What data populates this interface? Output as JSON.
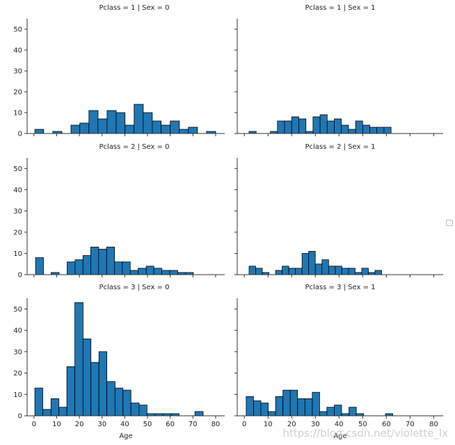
{
  "colors": {
    "bar": "#1f77b4",
    "edge": "#000000",
    "axis": "#333333"
  },
  "watermark": "https://blog.csdn.net/violette_lx",
  "chart_data": {
    "type": "bar",
    "facet_grid": {
      "rows": 3,
      "cols": 2,
      "sharex": true,
      "sharey": true
    },
    "xlabel": "Age",
    "ylim": [
      0,
      55
    ],
    "xlim": [
      -3,
      84
    ],
    "xticks": [
      0,
      10,
      20,
      30,
      40,
      50,
      60,
      70,
      80
    ],
    "yticks": [
      0,
      10,
      20,
      30,
      40,
      50
    ],
    "legend": "right",
    "panels": [
      {
        "title": "Pclass = 1 | Sex = 0",
        "bins": [
          {
            "x0": 0.4,
            "x1": 4.3,
            "value": 2
          },
          {
            "x0": 8.3,
            "x1": 12.3,
            "value": 1
          },
          {
            "x0": 16.3,
            "x1": 20.2,
            "value": 4
          },
          {
            "x0": 20.2,
            "x1": 24.2,
            "value": 5
          },
          {
            "x0": 24.2,
            "x1": 28.2,
            "value": 11
          },
          {
            "x0": 28.2,
            "x1": 32.2,
            "value": 7
          },
          {
            "x0": 32.2,
            "x1": 36.2,
            "value": 11
          },
          {
            "x0": 36.2,
            "x1": 40.1,
            "value": 10
          },
          {
            "x0": 40.1,
            "x1": 44.1,
            "value": 4
          },
          {
            "x0": 44.1,
            "x1": 48.1,
            "value": 14
          },
          {
            "x0": 48.1,
            "x1": 52.1,
            "value": 10
          },
          {
            "x0": 52.1,
            "x1": 56.0,
            "value": 6
          },
          {
            "x0": 56.0,
            "x1": 60.0,
            "value": 4
          },
          {
            "x0": 60.0,
            "x1": 64.0,
            "value": 6
          },
          {
            "x0": 64.0,
            "x1": 68.0,
            "value": 2
          },
          {
            "x0": 68.0,
            "x1": 72.0,
            "value": 3
          },
          {
            "x0": 76.0,
            "x1": 80.0,
            "value": 1
          }
        ]
      },
      {
        "title": "Pclass = 1 | Sex = 1",
        "bins": [
          {
            "x0": 2.0,
            "x1": 5.0,
            "value": 1
          },
          {
            "x0": 11.0,
            "x1": 14.0,
            "value": 1
          },
          {
            "x0": 14.0,
            "x1": 17.0,
            "value": 6
          },
          {
            "x0": 17.0,
            "x1": 20.0,
            "value": 6
          },
          {
            "x0": 20.0,
            "x1": 23.0,
            "value": 8
          },
          {
            "x0": 23.0,
            "x1": 26.0,
            "value": 7
          },
          {
            "x0": 26.0,
            "x1": 29.0,
            "value": 1
          },
          {
            "x0": 29.0,
            "x1": 32.0,
            "value": 8
          },
          {
            "x0": 32.0,
            "x1": 35.0,
            "value": 9
          },
          {
            "x0": 35.0,
            "x1": 38.0,
            "value": 6
          },
          {
            "x0": 38.0,
            "x1": 41.0,
            "value": 7
          },
          {
            "x0": 41.0,
            "x1": 44.0,
            "value": 4
          },
          {
            "x0": 44.0,
            "x1": 47.0,
            "value": 2
          },
          {
            "x0": 47.0,
            "x1": 50.0,
            "value": 6
          },
          {
            "x0": 50.0,
            "x1": 53.0,
            "value": 4
          },
          {
            "x0": 53.0,
            "x1": 56.0,
            "value": 3
          },
          {
            "x0": 56.0,
            "x1": 59.0,
            "value": 3
          },
          {
            "x0": 59.0,
            "x1": 62.0,
            "value": 3
          }
        ]
      },
      {
        "title": "Pclass = 2 | Sex = 0",
        "bins": [
          {
            "x0": 0.7,
            "x1": 4.2,
            "value": 8
          },
          {
            "x0": 7.6,
            "x1": 11.1,
            "value": 1
          },
          {
            "x0": 14.6,
            "x1": 18.1,
            "value": 6
          },
          {
            "x0": 18.1,
            "x1": 21.6,
            "value": 7
          },
          {
            "x0": 21.6,
            "x1": 25.0,
            "value": 9
          },
          {
            "x0": 25.0,
            "x1": 28.5,
            "value": 13
          },
          {
            "x0": 28.5,
            "x1": 32.0,
            "value": 12
          },
          {
            "x0": 32.0,
            "x1": 35.5,
            "value": 13
          },
          {
            "x0": 35.5,
            "x1": 38.9,
            "value": 6
          },
          {
            "x0": 38.9,
            "x1": 42.4,
            "value": 6
          },
          {
            "x0": 42.4,
            "x1": 45.9,
            "value": 2
          },
          {
            "x0": 45.9,
            "x1": 49.4,
            "value": 3
          },
          {
            "x0": 49.4,
            "x1": 52.8,
            "value": 4
          },
          {
            "x0": 52.8,
            "x1": 56.3,
            "value": 3
          },
          {
            "x0": 56.3,
            "x1": 59.8,
            "value": 2
          },
          {
            "x0": 59.8,
            "x1": 63.3,
            "value": 2
          },
          {
            "x0": 63.3,
            "x1": 66.7,
            "value": 1
          },
          {
            "x0": 66.7,
            "x1": 70.2,
            "value": 1
          }
        ]
      },
      {
        "title": "Pclass = 2 | Sex = 1",
        "bins": [
          {
            "x0": 2.0,
            "x1": 4.8,
            "value": 4
          },
          {
            "x0": 4.8,
            "x1": 7.6,
            "value": 3
          },
          {
            "x0": 7.6,
            "x1": 10.4,
            "value": 1
          },
          {
            "x0": 13.2,
            "x1": 16.0,
            "value": 2
          },
          {
            "x0": 16.0,
            "x1": 18.8,
            "value": 4
          },
          {
            "x0": 18.8,
            "x1": 21.6,
            "value": 3
          },
          {
            "x0": 21.6,
            "x1": 24.4,
            "value": 3
          },
          {
            "x0": 24.4,
            "x1": 27.2,
            "value": 10
          },
          {
            "x0": 27.2,
            "x1": 30.0,
            "value": 11
          },
          {
            "x0": 30.0,
            "x1": 32.8,
            "value": 5
          },
          {
            "x0": 32.8,
            "x1": 35.6,
            "value": 7
          },
          {
            "x0": 35.6,
            "x1": 38.4,
            "value": 4
          },
          {
            "x0": 38.4,
            "x1": 41.2,
            "value": 4
          },
          {
            "x0": 41.2,
            "x1": 44.0,
            "value": 3
          },
          {
            "x0": 44.0,
            "x1": 46.8,
            "value": 3
          },
          {
            "x0": 46.8,
            "x1": 49.6,
            "value": 1
          },
          {
            "x0": 49.6,
            "x1": 52.4,
            "value": 3
          },
          {
            "x0": 52.4,
            "x1": 55.2,
            "value": 1
          },
          {
            "x0": 55.2,
            "x1": 58.0,
            "value": 2
          }
        ]
      },
      {
        "title": "Pclass = 3 | Sex = 0",
        "bins": [
          {
            "x0": 0.4,
            "x1": 3.9,
            "value": 13
          },
          {
            "x0": 3.9,
            "x1": 7.5,
            "value": 3
          },
          {
            "x0": 7.5,
            "x1": 11.0,
            "value": 8
          },
          {
            "x0": 11.0,
            "x1": 14.5,
            "value": 4
          },
          {
            "x0": 14.5,
            "x1": 18.0,
            "value": 23
          },
          {
            "x0": 18.0,
            "x1": 21.6,
            "value": 53
          },
          {
            "x0": 21.6,
            "x1": 25.1,
            "value": 36
          },
          {
            "x0": 25.1,
            "x1": 28.6,
            "value": 25
          },
          {
            "x0": 28.6,
            "x1": 32.1,
            "value": 30
          },
          {
            "x0": 32.1,
            "x1": 35.7,
            "value": 16
          },
          {
            "x0": 35.7,
            "x1": 39.2,
            "value": 13
          },
          {
            "x0": 39.2,
            "x1": 42.7,
            "value": 12
          },
          {
            "x0": 42.7,
            "x1": 46.3,
            "value": 6
          },
          {
            "x0": 46.3,
            "x1": 49.8,
            "value": 5
          },
          {
            "x0": 49.8,
            "x1": 53.3,
            "value": 1
          },
          {
            "x0": 53.3,
            "x1": 56.8,
            "value": 1
          },
          {
            "x0": 56.8,
            "x1": 60.4,
            "value": 1
          },
          {
            "x0": 60.4,
            "x1": 63.9,
            "value": 1
          },
          {
            "x0": 70.9,
            "x1": 74.5,
            "value": 2
          }
        ]
      },
      {
        "title": "Pclass = 3 | Sex = 1",
        "bins": [
          {
            "x0": 0.8,
            "x1": 3.9,
            "value": 9
          },
          {
            "x0": 3.9,
            "x1": 7.0,
            "value": 7
          },
          {
            "x0": 7.0,
            "x1": 10.1,
            "value": 6
          },
          {
            "x0": 10.1,
            "x1": 13.2,
            "value": 2
          },
          {
            "x0": 13.2,
            "x1": 16.3,
            "value": 9
          },
          {
            "x0": 16.3,
            "x1": 19.4,
            "value": 12
          },
          {
            "x0": 19.4,
            "x1": 22.5,
            "value": 12
          },
          {
            "x0": 22.5,
            "x1": 25.6,
            "value": 8
          },
          {
            "x0": 25.6,
            "x1": 28.7,
            "value": 8
          },
          {
            "x0": 28.7,
            "x1": 31.8,
            "value": 11
          },
          {
            "x0": 31.8,
            "x1": 34.9,
            "value": 2
          },
          {
            "x0": 34.9,
            "x1": 38.0,
            "value": 4
          },
          {
            "x0": 38.0,
            "x1": 41.1,
            "value": 5
          },
          {
            "x0": 41.1,
            "x1": 44.2,
            "value": 1
          },
          {
            "x0": 44.2,
            "x1": 47.3,
            "value": 4
          },
          {
            "x0": 47.3,
            "x1": 50.4,
            "value": 1
          },
          {
            "x0": 59.6,
            "x1": 62.7,
            "value": 1
          }
        ]
      }
    ]
  }
}
